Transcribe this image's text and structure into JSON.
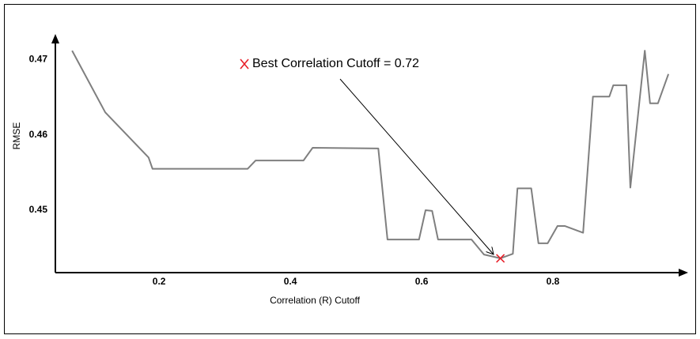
{
  "chart_data": {
    "type": "line",
    "xlabel": "Correlation (R) Cutoff",
    "ylabel": "RMSE",
    "annotation": "Best Correlation Cutoff = 0.72",
    "color": "#7f7f7f",
    "marker_color": "#e8202a",
    "grid": false,
    "xlim": [
      0.042,
      1.0
    ],
    "ylim": [
      0.4417,
      0.473
    ],
    "xticks": [
      0.2,
      0.4,
      0.6,
      0.8
    ],
    "yticks": [
      0.45,
      0.46,
      0.47
    ],
    "x": [
      0.0675,
      0.118,
      0.184,
      0.19,
      0.335,
      0.347,
      0.42,
      0.434,
      0.534,
      0.548,
      0.596,
      0.606,
      0.616,
      0.625,
      0.676,
      0.695,
      0.72,
      0.739,
      0.746,
      0.767,
      0.778,
      0.792,
      0.807,
      0.818,
      0.846,
      0.861,
      0.886,
      0.892,
      0.912,
      0.918,
      0.94,
      0.948,
      0.96,
      0.976
    ],
    "values": [
      0.4712,
      0.463,
      0.457,
      0.4555,
      0.4555,
      0.4566,
      0.4566,
      0.4583,
      0.4582,
      0.4461,
      0.4461,
      0.45,
      0.4499,
      0.4461,
      0.4461,
      0.4441,
      0.4436,
      0.4442,
      0.4529,
      0.4529,
      0.4456,
      0.4456,
      0.4479,
      0.4479,
      0.447,
      0.4651,
      0.4651,
      0.4666,
      0.4666,
      0.453,
      0.4712,
      0.4642,
      0.4642,
      0.4681
    ],
    "best_point": {
      "x": 0.72,
      "y": 0.4436
    }
  }
}
